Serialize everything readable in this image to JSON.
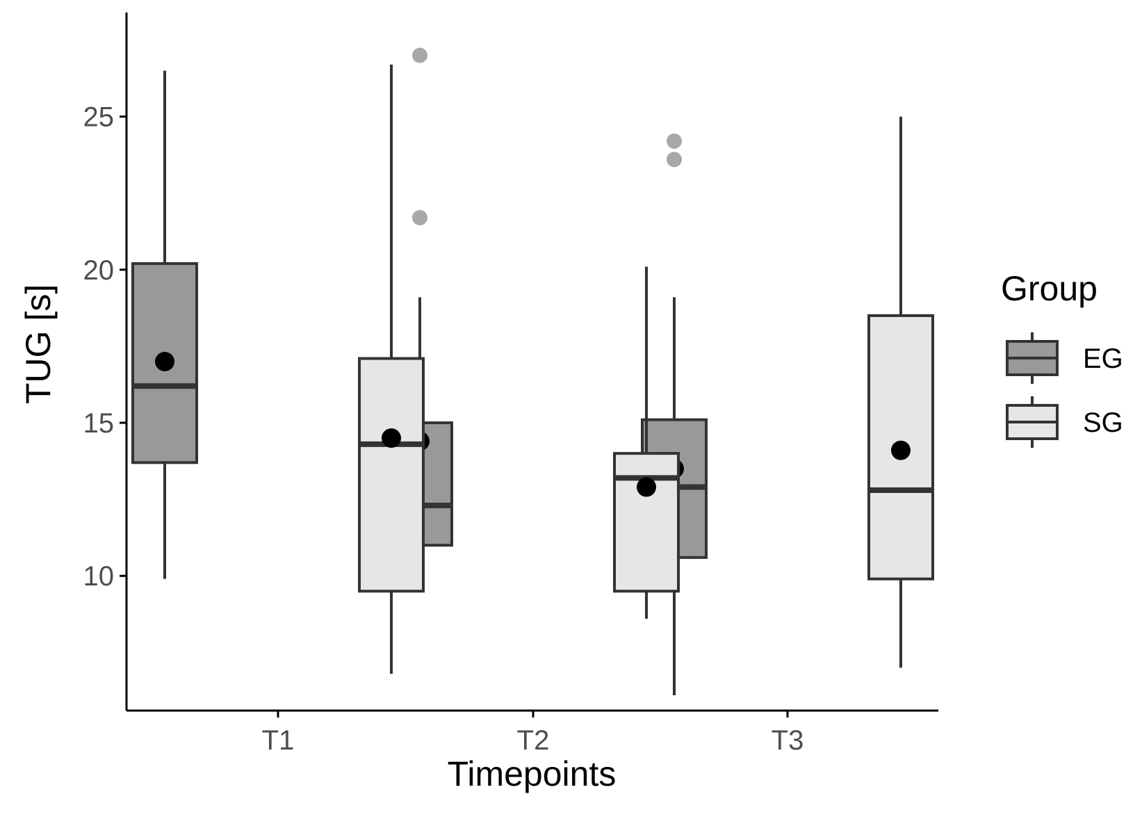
{
  "chart_data": {
    "type": "boxplot",
    "xlabel": "Timepoints",
    "ylabel": "TUG [s]",
    "categories": [
      "T1",
      "T2",
      "T3"
    ],
    "yticks": [
      10,
      15,
      20,
      25
    ],
    "ylim": [
      5.6,
      28.4
    ],
    "grid": false,
    "legend": {
      "title": "Group",
      "position": "right",
      "entries": [
        {
          "label": "EG",
          "fill": "#999999"
        },
        {
          "label": "SG",
          "fill": "#e6e6e6"
        }
      ]
    },
    "colors": {
      "EG": "#999999",
      "SG": "#e6e6e6",
      "box_line": "#333333",
      "mean_point": "#000000",
      "outlier": "#999999",
      "axis": "#000000"
    },
    "series": [
      {
        "name": "EG",
        "boxes": [
          {
            "category": "T1",
            "whisker_low": 9.9,
            "q1": 13.7,
            "median": 16.2,
            "q3": 20.2,
            "whisker_high": 26.5,
            "mean": 17.0,
            "outliers": []
          },
          {
            "category": "T2",
            "whisker_low": 10.0,
            "q1": 11.0,
            "median": 12.3,
            "q3": 15.0,
            "whisker_high": 19.1,
            "mean": 14.4,
            "outliers": [
              27.0,
              21.7
            ]
          },
          {
            "category": "T3",
            "whisker_low": 6.1,
            "q1": 10.6,
            "median": 12.9,
            "q3": 15.1,
            "whisker_high": 19.1,
            "mean": 13.5,
            "outliers": [
              24.2,
              23.6
            ]
          }
        ]
      },
      {
        "name": "SG",
        "boxes": [
          {
            "category": "T1",
            "whisker_low": 6.8,
            "q1": 9.5,
            "median": 14.3,
            "q3": 17.1,
            "whisker_high": 26.7,
            "mean": 14.5,
            "outliers": []
          },
          {
            "category": "T2",
            "whisker_low": 8.6,
            "q1": 9.5,
            "median": 13.2,
            "q3": 14.0,
            "whisker_high": 20.1,
            "mean": 12.9,
            "outliers": []
          },
          {
            "category": "T3",
            "whisker_low": 7.0,
            "q1": 9.9,
            "median": 12.8,
            "q3": 18.5,
            "whisker_high": 25.0,
            "mean": 14.1,
            "outliers": []
          }
        ]
      }
    ]
  }
}
